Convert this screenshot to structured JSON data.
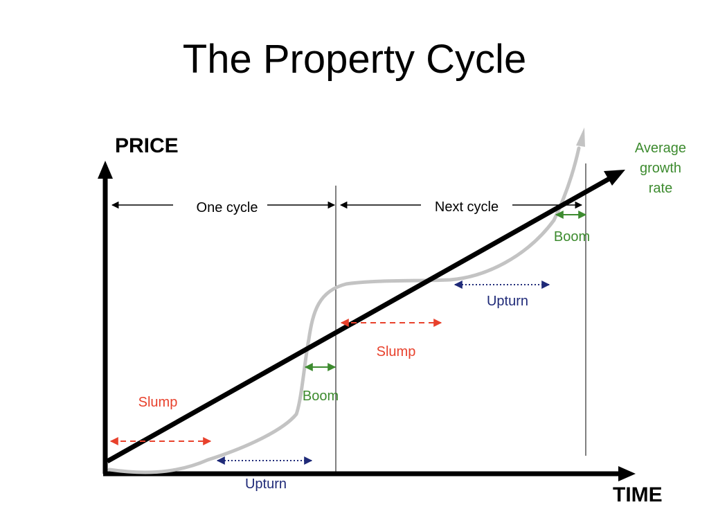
{
  "title": "The Property Cycle",
  "axes": {
    "y_label": "PRICE",
    "x_label": "TIME"
  },
  "cycles": {
    "first": "One cycle",
    "second": "Next cycle"
  },
  "trend_label": [
    "Average",
    "growth",
    "rate"
  ],
  "phases": [
    {
      "id": "slump-1",
      "label": "Slump",
      "color": "#e8412c",
      "style": "dashed"
    },
    {
      "id": "upturn-1",
      "label": "Upturn",
      "color": "#1f2a78",
      "style": "dotted"
    },
    {
      "id": "boom-1",
      "label": "Boom",
      "color": "#3d8b2f",
      "style": "solid"
    },
    {
      "id": "slump-2",
      "label": "Slump",
      "color": "#e8412c",
      "style": "dashed"
    },
    {
      "id": "upturn-2",
      "label": "Upturn",
      "color": "#1f2a78",
      "style": "dotted"
    },
    {
      "id": "boom-2",
      "label": "Boom",
      "color": "#3d8b2f",
      "style": "solid"
    }
  ],
  "colors": {
    "axis": "#000000",
    "trend": "#000000",
    "price_curve": "#c3c3c3",
    "trend_label": "#3d8b2f",
    "boom": "#3d8b2f",
    "slump": "#e8412c",
    "upturn": "#1f2a78"
  }
}
